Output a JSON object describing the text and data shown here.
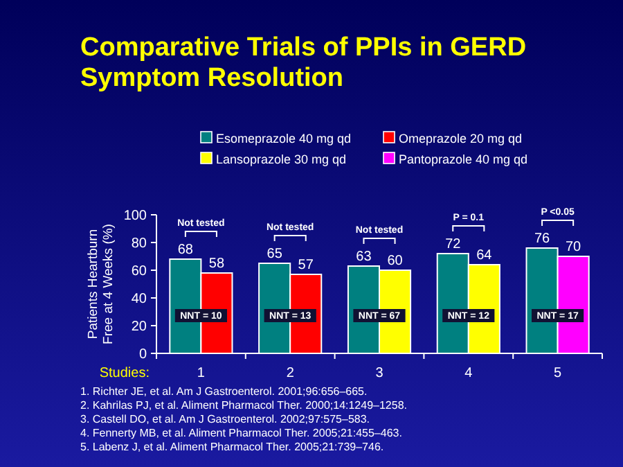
{
  "chart_data": {
    "type": "bar",
    "title": "Comparative Trials of PPIs in GERD Symptom Resolution",
    "xlabel": "Studies:",
    "ylabel": "Patients Heartburn Free at 4 Weeks (%)",
    "categories": [
      "1",
      "2",
      "3",
      "4",
      "5"
    ],
    "series": [
      {
        "name": "Esomeprazole 40 mg qd",
        "color": "#008080",
        "values": [
          68,
          65,
          63,
          72,
          76
        ]
      },
      {
        "name": "Omeprazole 20 mg qd",
        "color": "#ff0000",
        "values": [
          58,
          57,
          null,
          null,
          null
        ]
      },
      {
        "name": "Lansoprazole 30 mg qd",
        "color": "#ffff00",
        "values": [
          null,
          null,
          60,
          64,
          null
        ]
      },
      {
        "name": "Pantoprazole 40 mg qd",
        "color": "#ff00ff",
        "values": [
          null,
          null,
          null,
          null,
          70
        ]
      }
    ],
    "ylim": [
      0,
      100
    ],
    "yticks": [
      0,
      20,
      40,
      60,
      80,
      100
    ],
    "data_labels": true,
    "legend": "top",
    "grid": false,
    "annotations": [
      "Not tested",
      "Not tested",
      "Not tested",
      "P = 0.1",
      "P <0.05",
      {
        "text": "NNT = 10",
        "x": "1",
        "y": 25
      },
      {
        "text": "NNT = 13",
        "x": "2",
        "y": 25
      },
      {
        "text": "NNT = 67",
        "x": "3",
        "y": 25
      },
      {
        "text": "NNT = 12",
        "x": "4",
        "y": 25
      },
      {
        "text": "NNT = 17",
        "x": "5",
        "y": 25
      },
      "1. Richter JE, et al. Am J Gastroenterol. 2001;96:656–665.",
      "2. Kahrilas PJ, et al. Aliment Pharmacol Ther. 2000;14:1249–1258.",
      "3. Castell DO, et al. Am J Gastroenterol. 2002;97:575–583.",
      "4. Fennerty MB, et al. Aliment Pharmacol Ther. 2005;21:455–463.",
      "5. Labenz J, et al. Aliment Pharmacol Ther. 2005;21:739–746."
    ]
  }
}
